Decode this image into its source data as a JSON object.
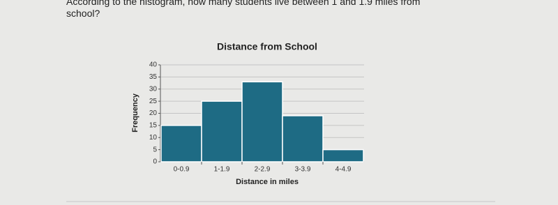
{
  "question": "According to the histogram, how many students live between 1 and 1.9 miles from school?",
  "chart_data": {
    "type": "bar",
    "title": "Distance from School",
    "x_label": "Distance in miles",
    "y_label": "Frequency",
    "categories": [
      "0-0.9",
      "1-1.9",
      "2-2.9",
      "3-3.9",
      "4-4.9"
    ],
    "values": [
      15,
      25,
      33,
      19,
      5
    ],
    "color": "#1e6b84",
    "ylim": [
      0,
      40
    ],
    "yticks": [
      0,
      5,
      10,
      15,
      20,
      25,
      30,
      35,
      40
    ],
    "grid": true
  }
}
